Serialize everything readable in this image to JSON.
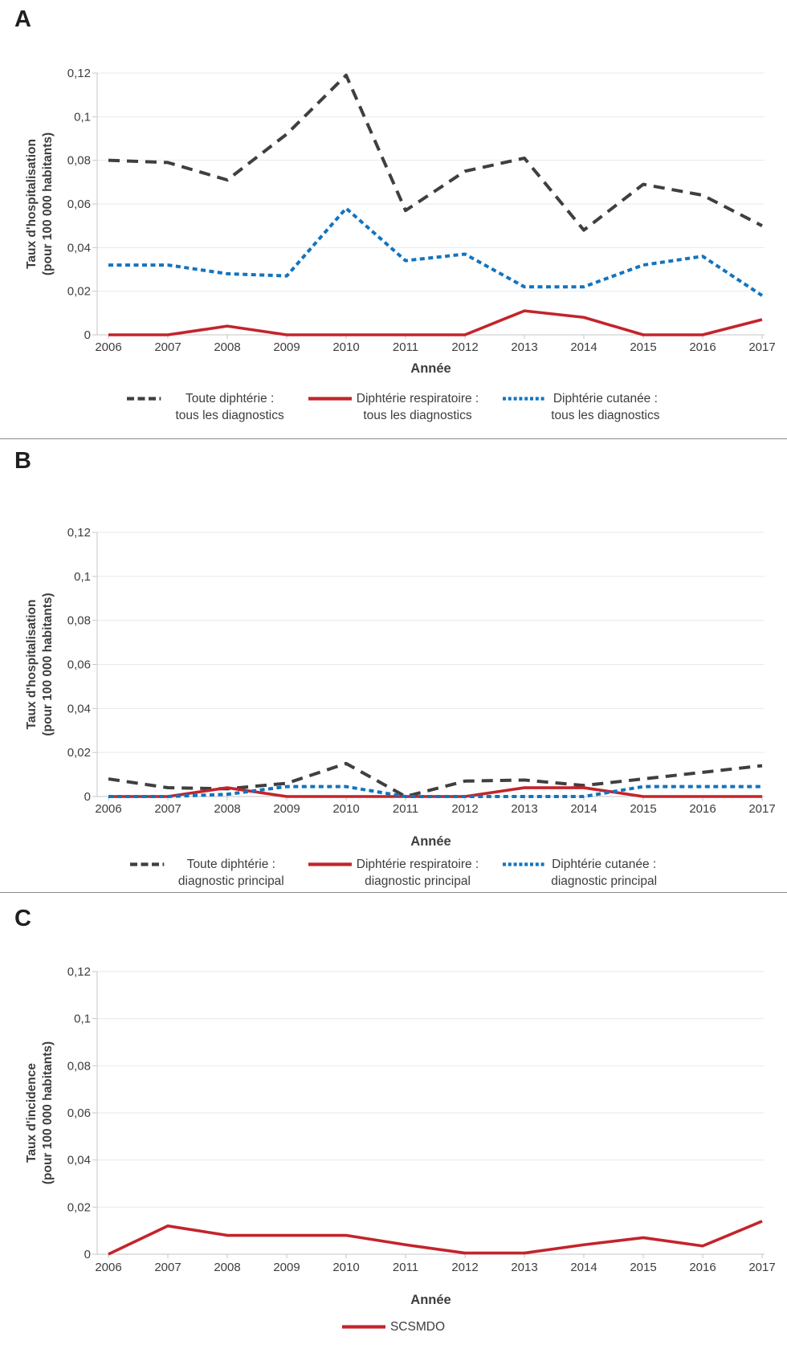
{
  "panels": [
    {
      "label": "A",
      "ylabel_line1": "Taux d'hospitalisation",
      "ylabel_line2": "(pour 100 000 habitants)",
      "xlabel": "Année",
      "legend": [
        {
          "line1": "Toute diphtérie :",
          "line2": "tous les diagnostics"
        },
        {
          "line1": "Diphtérie respiratoire :",
          "line2": "tous les diagnostics"
        },
        {
          "line1": "Diphtérie cutanée :",
          "line2": "tous les diagnostics"
        }
      ]
    },
    {
      "label": "B",
      "ylabel_line1": "Taux d'hospitalisation",
      "ylabel_line2": "(pour 100 000 habitants)",
      "xlabel": "Année",
      "legend": [
        {
          "line1": "Toute diphtérie :",
          "line2": "diagnostic principal"
        },
        {
          "line1": "Diphtérie respiratoire :",
          "line2": "diagnostic principal"
        },
        {
          "line1": "Diphtérie cutanée :",
          "line2": "diagnostic principal"
        }
      ]
    },
    {
      "label": "C",
      "ylabel_line1": "Taux d'incidence",
      "ylabel_line2": "(pour 100 000 habitants)",
      "xlabel": "Année",
      "legend": [
        {
          "line1": "SCSMDO",
          "line2": ""
        }
      ]
    }
  ],
  "chart_data": [
    {
      "type": "line",
      "title": "A",
      "xlabel": "Année",
      "ylabel": "Taux d'hospitalisation (pour 100 000 habitants)",
      "x": [
        2006,
        2007,
        2008,
        2009,
        2010,
        2011,
        2012,
        2013,
        2014,
        2015,
        2016,
        2017
      ],
      "ylim": [
        0,
        0.12
      ],
      "yticks": [
        "0",
        "0,02",
        "0,04",
        "0,06",
        "0,08",
        "0,1",
        "0,12"
      ],
      "grid": "horizontal",
      "legend_position": "bottom",
      "series": [
        {
          "name": "Toute diphtérie : tous les diagnostics",
          "color": "#3f3f3f",
          "dash": "dashed",
          "values": [
            0.08,
            0.079,
            0.071,
            0.092,
            0.119,
            0.057,
            0.075,
            0.081,
            0.048,
            0.069,
            0.064,
            0.05
          ]
        },
        {
          "name": "Diphtérie respiratoire : tous les diagnostics",
          "color": "#c3242b",
          "dash": "solid",
          "values": [
            0,
            0,
            0.004,
            0,
            0,
            0,
            0,
            0.011,
            0.008,
            0,
            0,
            0.007
          ]
        },
        {
          "name": "Diphtérie cutanée : tous les diagnostics",
          "color": "#1274bf",
          "dash": "dotted",
          "values": [
            0.032,
            0.032,
            0.028,
            0.027,
            0.058,
            0.034,
            0.037,
            0.022,
            0.022,
            0.032,
            0.036,
            0.018
          ]
        }
      ]
    },
    {
      "type": "line",
      "title": "B",
      "xlabel": "Année",
      "ylabel": "Taux d'hospitalisation (pour 100 000 habitants)",
      "x": [
        2006,
        2007,
        2008,
        2009,
        2010,
        2011,
        2012,
        2013,
        2014,
        2015,
        2016,
        2017
      ],
      "ylim": [
        0,
        0.12
      ],
      "yticks": [
        "0",
        "0,02",
        "0,04",
        "0,06",
        "0,08",
        "0,1",
        "0,12"
      ],
      "grid": "horizontal",
      "legend_position": "bottom",
      "series": [
        {
          "name": "Toute diphtérie : diagnostic principal",
          "color": "#3f3f3f",
          "dash": "dashed",
          "values": [
            0.008,
            0.004,
            0.0035,
            0.006,
            0.015,
            0,
            0.007,
            0.0075,
            0.005,
            0.008,
            0.011,
            0.014
          ]
        },
        {
          "name": "Diphtérie respiratoire : diagnostic principal",
          "color": "#c3242b",
          "dash": "solid",
          "values": [
            0,
            0,
            0.004,
            0,
            0,
            0,
            0,
            0.004,
            0.004,
            0,
            0,
            0
          ]
        },
        {
          "name": "Diphtérie cutanée : diagnostic principal",
          "color": "#1274bf",
          "dash": "dotted",
          "values": [
            0,
            0,
            0.001,
            0.0045,
            0.0045,
            0,
            0,
            0,
            0,
            0.0045,
            0.0045,
            0.0045
          ]
        }
      ]
    },
    {
      "type": "line",
      "title": "C",
      "xlabel": "Année",
      "ylabel": "Taux d'incidence (pour 100 000 habitants)",
      "x": [
        2006,
        2007,
        2008,
        2009,
        2010,
        2011,
        2012,
        2013,
        2014,
        2015,
        2016,
        2017
      ],
      "ylim": [
        0,
        0.12
      ],
      "yticks": [
        "0",
        "0,02",
        "0,04",
        "0,06",
        "0,08",
        "0,1",
        "0,12"
      ],
      "grid": "horizontal",
      "legend_position": "bottom",
      "series": [
        {
          "name": "SCSMDO",
          "color": "#c3242b",
          "dash": "solid",
          "values": [
            0,
            0.012,
            0.008,
            0.008,
            0.008,
            0.004,
            0.0005,
            0.0005,
            0.004,
            0.007,
            0.0035,
            0.014
          ]
        }
      ]
    }
  ],
  "style": {
    "grid_color": "#e9e9e9",
    "axis_color": "#c6c6c6",
    "text_color": "#3d3d3d"
  }
}
